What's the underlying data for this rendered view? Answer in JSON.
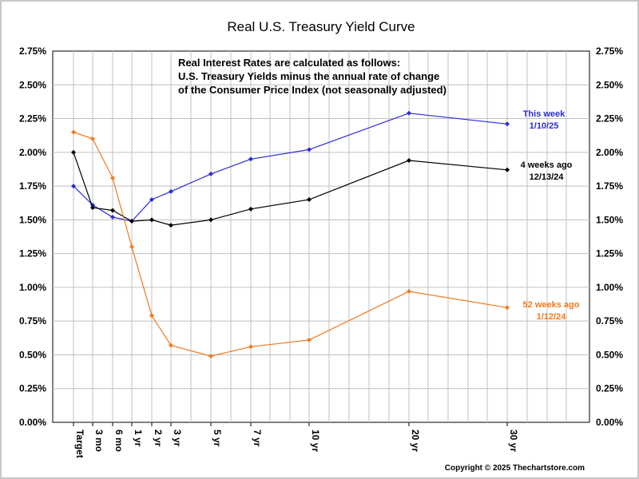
{
  "chart_data": {
    "type": "line",
    "title": "Real U.S. Treasury Yield Curve",
    "xlabel": "",
    "ylabel": "",
    "categories": [
      "Target",
      "3 mo",
      "6 mo",
      "1 yr",
      "2 yr",
      "3 yr",
      "5 yr",
      "7 yr",
      "10 yr",
      "20 yr",
      "30 yr"
    ],
    "y_tick_labels": [
      "0.00%",
      "0.25%",
      "0.50%",
      "0.75%",
      "1.00%",
      "1.25%",
      "1.50%",
      "1.75%",
      "2.00%",
      "2.25%",
      "2.50%",
      "2.75%"
    ],
    "ylim": [
      0,
      2.75
    ],
    "grid": true,
    "annotation": [
      "Real Interest Rates are calculated as follows:",
      "U.S. Treasury Yields minus the annual rate of change",
      "of the Consumer Price Index (not seasonally adjusted)"
    ],
    "copyright": "Copyright © 2025 Thechartstore.com",
    "series": [
      {
        "label_lines": [
          "This week",
          "1/10/25"
        ],
        "color": "#2b2bd9",
        "values": [
          1.75,
          1.61,
          1.52,
          1.49,
          1.65,
          1.71,
          1.84,
          1.95,
          2.02,
          2.29,
          2.21
        ]
      },
      {
        "label_lines": [
          "4 weeks ago",
          "12/13/24"
        ],
        "color": "#000000",
        "values": [
          2.0,
          1.59,
          1.57,
          1.49,
          1.5,
          1.46,
          1.5,
          1.58,
          1.65,
          1.94,
          1.87
        ]
      },
      {
        "label_lines": [
          "52 weeks ago",
          "1/12/24"
        ],
        "color": "#f07a1e",
        "values": [
          2.15,
          2.1,
          1.81,
          1.3,
          0.79,
          0.57,
          0.49,
          0.56,
          0.61,
          0.97,
          0.85
        ]
      }
    ]
  }
}
